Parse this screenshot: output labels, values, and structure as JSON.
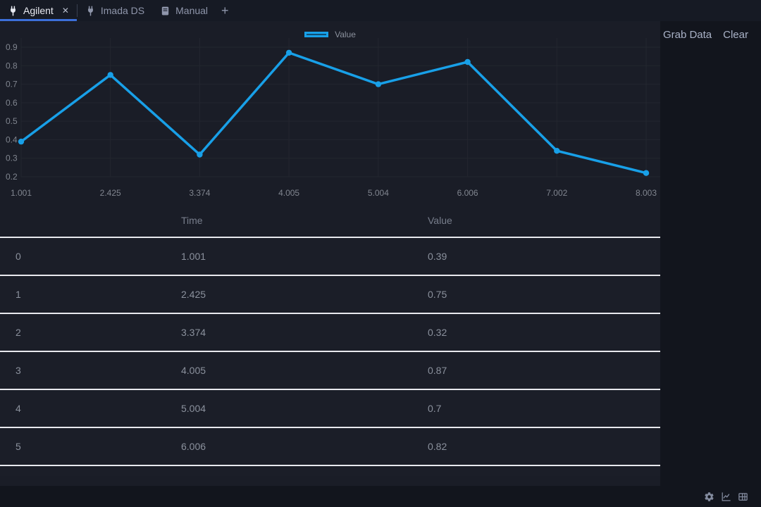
{
  "tab_bar": {
    "tabs": [
      {
        "label": "Agilent",
        "icon": "plug",
        "active": true,
        "close_label": "✕"
      },
      {
        "label": "Imada DS",
        "icon": "plug",
        "active": false
      },
      {
        "label": "Manual",
        "icon": "book",
        "active": false
      }
    ],
    "add_label": "+"
  },
  "toolbar": {
    "grab_data_label": "Grab Data",
    "clear_label": "Clear"
  },
  "legend": {
    "label": "Value"
  },
  "chart_data": {
    "type": "line",
    "title": "",
    "xlabel": "",
    "ylabel": "",
    "x": [
      "1.001",
      "2.425",
      "3.374",
      "4.005",
      "5.004",
      "6.006",
      "7.002",
      "8.003"
    ],
    "series": [
      {
        "name": "Value",
        "values": [
          0.39,
          0.75,
          0.32,
          0.87,
          0.7,
          0.82,
          0.34,
          0.22
        ]
      }
    ],
    "ylim": [
      0.2,
      0.9
    ],
    "yticks": [
      0.2,
      0.3,
      0.4,
      0.5,
      0.6,
      0.7,
      0.8,
      0.9
    ],
    "grid": true,
    "legend_position": "top",
    "line_color": "#18a0e8",
    "legend_fill": "#0f4e74",
    "grid_color": "#23262f"
  },
  "table": {
    "headers": {
      "index": "",
      "time": "Time",
      "value": "Value"
    },
    "rows": [
      {
        "index": "0",
        "time": "1.001",
        "value": "0.39"
      },
      {
        "index": "1",
        "time": "2.425",
        "value": "0.75"
      },
      {
        "index": "2",
        "time": "3.374",
        "value": "0.32"
      },
      {
        "index": "3",
        "time": "4.005",
        "value": "0.87"
      },
      {
        "index": "4",
        "time": "5.004",
        "value": "0.7"
      },
      {
        "index": "5",
        "time": "6.006",
        "value": "0.82"
      }
    ]
  },
  "colors": {
    "accent_line": "#18a0e8",
    "tab_underline": "#3c6fd9",
    "row_separator": "#e8e9ee",
    "panel_bg": "#1a1d27",
    "page_bg": "#12151d"
  }
}
